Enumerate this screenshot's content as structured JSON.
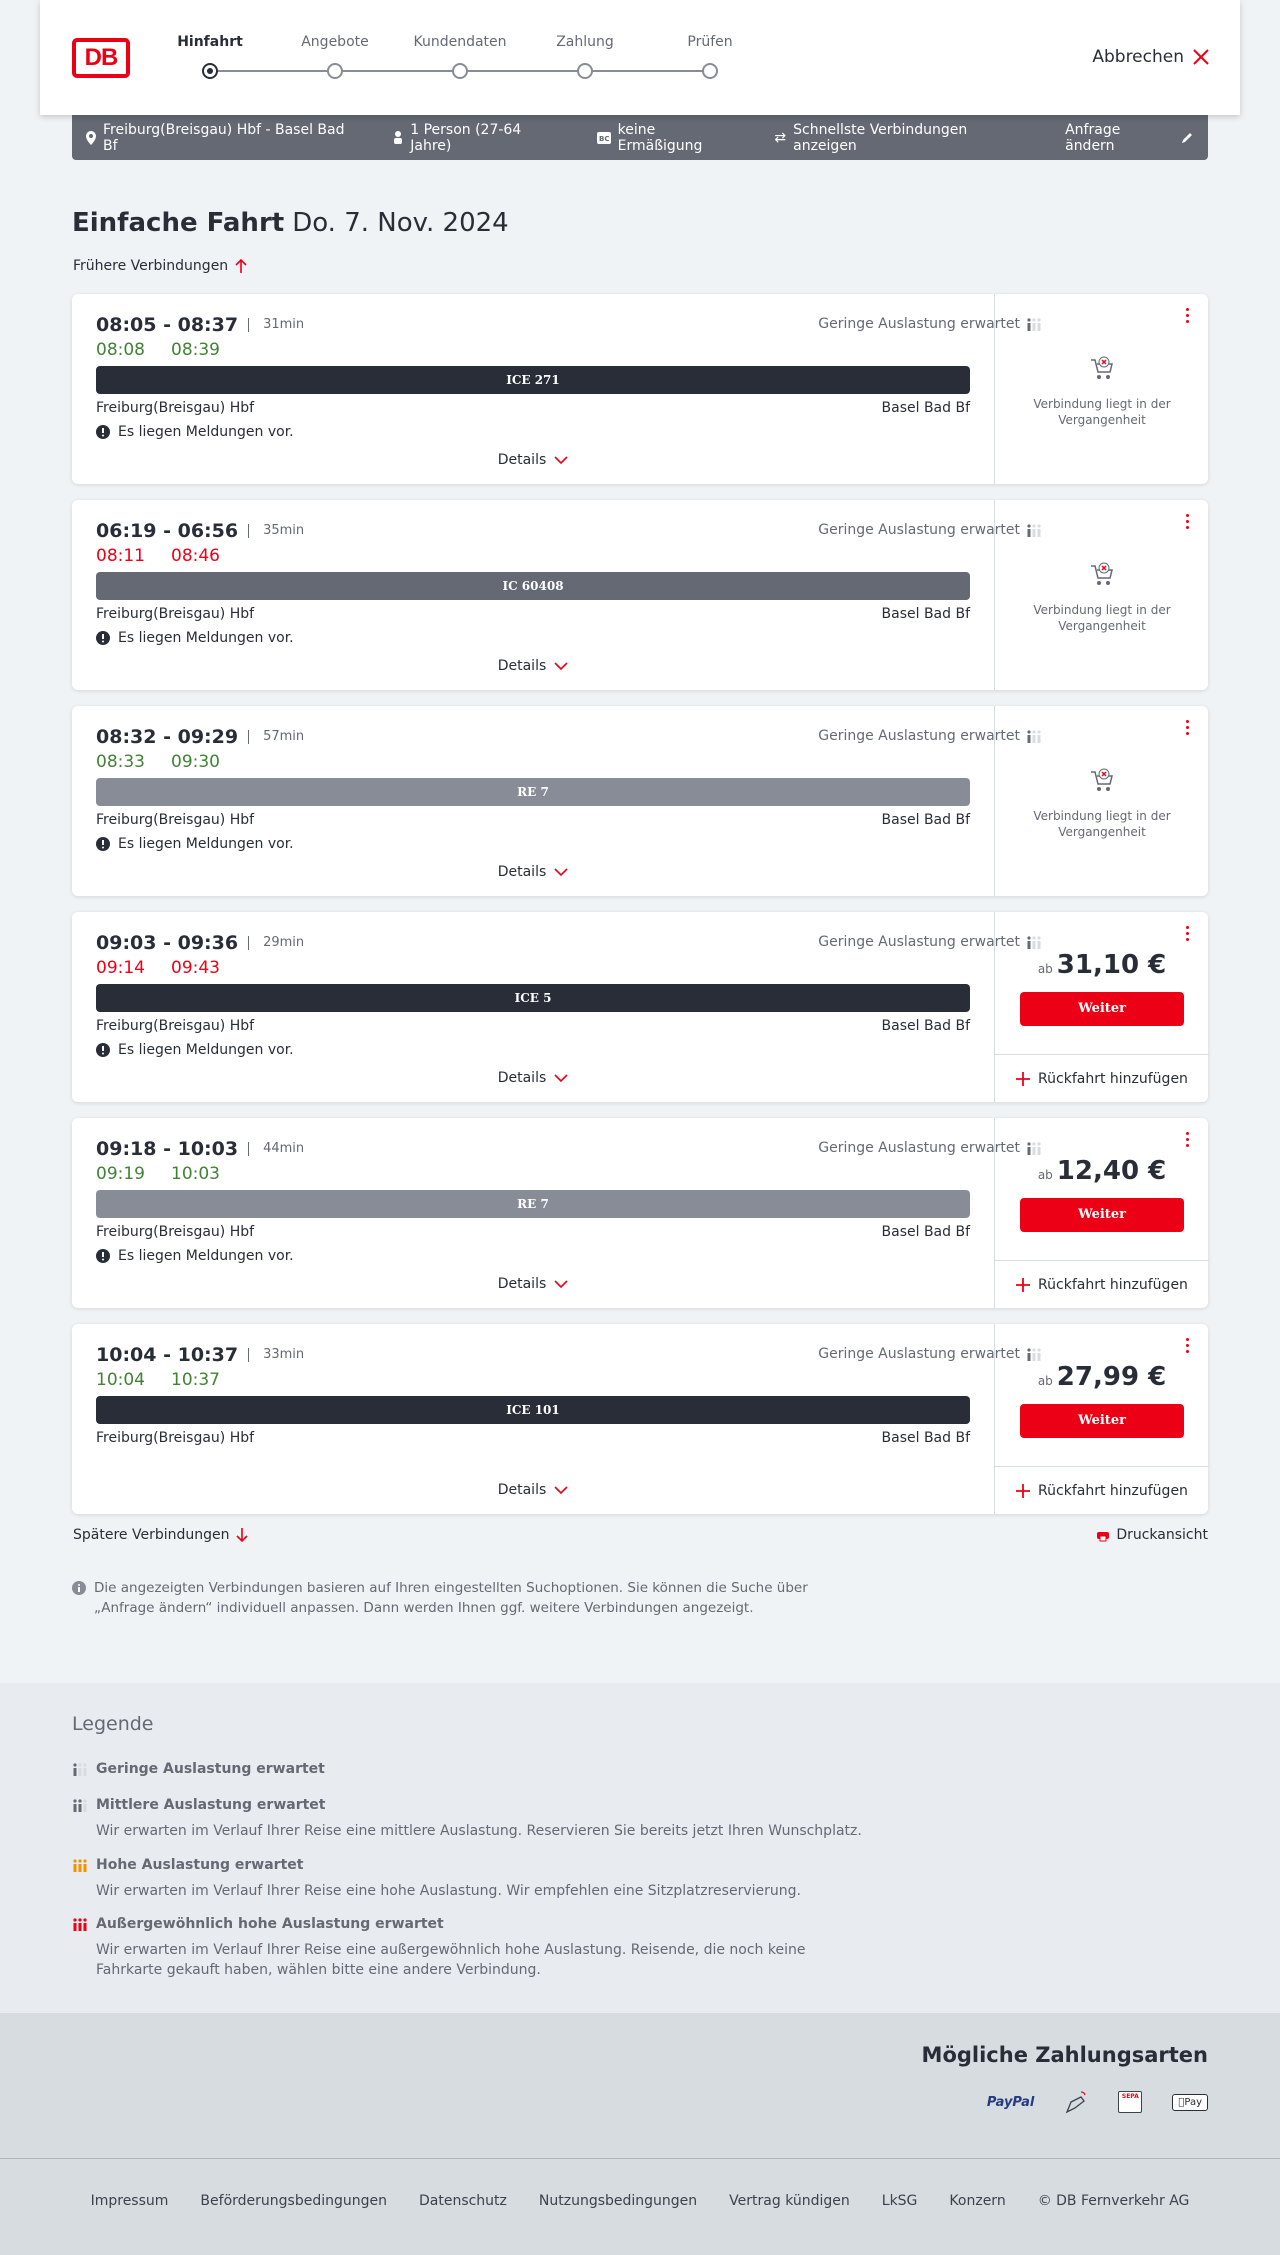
{
  "header": {
    "logo": "DB",
    "steps": [
      "Hinfahrt",
      "Angebote",
      "Kundendaten",
      "Zahlung",
      "Prüfen"
    ],
    "active_step": 0,
    "cancel": "Abbrechen"
  },
  "summary": {
    "route": "Freiburg(Breisgau) Hbf - Basel Bad Bf",
    "persons": "1 Person (27-64 Jahre)",
    "discount": "keine Ermäßigung",
    "fastest": "Schnellste Verbindungen anzeigen",
    "edit": "Anfrage ändern"
  },
  "page": {
    "title": "Einfache Fahrt",
    "date": "Do. 7. Nov. 2024",
    "earlier": "Frühere Verbindungen",
    "later": "Spätere Verbindungen",
    "print": "Druckansicht",
    "info": "Die angezeigten Verbindungen basieren auf Ihren eingestellten Suchoptionen. Sie können die Suche über „Anfrage ändern“ individuell anpassen. Dann werden Ihnen ggf. weitere Verbindungen angezeigt."
  },
  "connections": [
    {
      "time": "08:05 - 08:37",
      "duration": "31min",
      "rt_dep": "08:08",
      "rt_arr": "08:39",
      "delayed": false,
      "load": "Geringe Auslastung erwartet",
      "train": "ICE 271",
      "train_color": "#282d37",
      "from": "Freiburg(Breisgau) Hbf",
      "to": "Basel Bad Bf",
      "message": "Es liegen Meldungen vor.",
      "details": "Details",
      "status": "Verbindung liegt in der Vergangenheit"
    },
    {
      "time": "06:19 - 06:56",
      "duration": "35min",
      "rt_dep": "08:11",
      "rt_arr": "08:46",
      "delayed": true,
      "load": "Geringe Auslastung erwartet",
      "train": "IC 60408",
      "train_color": "#646973",
      "from": "Freiburg(Breisgau) Hbf",
      "to": "Basel Bad Bf",
      "message": "Es liegen Meldungen vor.",
      "details": "Details",
      "status": "Verbindung liegt in der Vergangenheit"
    },
    {
      "time": "08:32 - 09:29",
      "duration": "57min",
      "rt_dep": "08:33",
      "rt_arr": "09:30",
      "delayed": false,
      "load": "Geringe Auslastung erwartet",
      "train": "RE 7",
      "train_color": "#878c96",
      "from": "Freiburg(Breisgau) Hbf",
      "to": "Basel Bad Bf",
      "message": "Es liegen Meldungen vor.",
      "details": "Details",
      "status": "Verbindung liegt in der Vergangenheit"
    },
    {
      "time": "09:03 - 09:36",
      "duration": "29min",
      "rt_dep": "09:14",
      "rt_arr": "09:43",
      "delayed": true,
      "load": "Geringe Auslastung erwartet",
      "train": "ICE 5",
      "train_color": "#282d37",
      "from": "Freiburg(Breisgau) Hbf",
      "to": "Basel Bad Bf",
      "message": "Es liegen Meldungen vor.",
      "details": "Details",
      "price_prefix": "ab",
      "price": "31,10 €",
      "button": "Weiter",
      "return": "Rückfahrt hinzufügen"
    },
    {
      "time": "09:18 - 10:03",
      "duration": "44min",
      "rt_dep": "09:19",
      "rt_arr": "10:03",
      "delayed": false,
      "load": "Geringe Auslastung erwartet",
      "train": "RE 7",
      "train_color": "#878c96",
      "from": "Freiburg(Breisgau) Hbf",
      "to": "Basel Bad Bf",
      "message": "Es liegen Meldungen vor.",
      "details": "Details",
      "price_prefix": "ab",
      "price": "12,40 €",
      "button": "Weiter",
      "return": "Rückfahrt hinzufügen"
    },
    {
      "time": "10:04 - 10:37",
      "duration": "33min",
      "rt_dep": "10:04",
      "rt_arr": "10:37",
      "delayed": false,
      "load": "Geringe Auslastung erwartet",
      "train": "ICE 101",
      "train_color": "#282d37",
      "from": "Freiburg(Breisgau) Hbf",
      "to": "Basel Bad Bf",
      "details": "Details",
      "price_prefix": "ab",
      "price": "27,99 €",
      "button": "Weiter",
      "return": "Rückfahrt hinzufügen"
    }
  ],
  "legend": {
    "title": "Legende",
    "items": [
      {
        "title": "Geringe Auslastung erwartet",
        "level": 1,
        "color": "#646973"
      },
      {
        "title": "Mittlere Auslastung erwartet",
        "text": "Wir erwarten im Verlauf Ihrer Reise eine mittlere Auslastung. Reservieren Sie bereits jetzt Ihren Wunschplatz.",
        "level": 2,
        "color": "#646973"
      },
      {
        "title": "Hohe Auslastung erwartet",
        "text": "Wir erwarten im Verlauf Ihrer Reise eine hohe Auslastung. Wir empfehlen eine Sitzplatzreservierung.",
        "level": 3,
        "color": "#f39200"
      },
      {
        "title": "Außergewöhnlich hohe Auslastung erwartet",
        "text": "Wir erwarten im Verlauf Ihrer Reise eine außergewöhnlich hohe Auslastung. Reisende, die noch keine Fahrkarte gekauft haben, wählen bitte eine andere Verbindung.",
        "level": 4,
        "color": "#ec0016"
      }
    ]
  },
  "payment": {
    "title": "Mögliche Zahlungsarten",
    "methods": [
      "PayPal",
      "SEPA",
      "Pay"
    ]
  },
  "footer": {
    "links": [
      "Impressum",
      "Beförderungsbedingungen",
      "Datenschutz",
      "Nutzungsbedingungen",
      "Vertrag kündigen",
      "LkSG",
      "Konzern",
      "© DB Fernverkehr AG"
    ]
  },
  "colors": {
    "accent": "#ec0016",
    "ontime": "#408335",
    "text": "#282d37"
  }
}
